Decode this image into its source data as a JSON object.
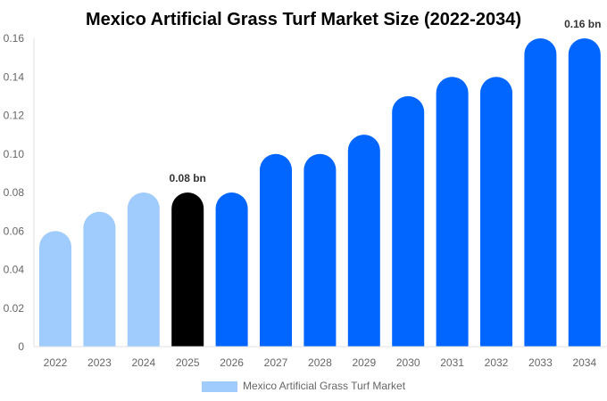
{
  "chart_data": {
    "type": "bar",
    "title": "Mexico Artificial Grass Turf Market Size (2022-2034)",
    "categories": [
      "2022",
      "2023",
      "2024",
      "2025",
      "2026",
      "2027",
      "2028",
      "2029",
      "2030",
      "2031",
      "2032",
      "2033",
      "2034"
    ],
    "series": [
      {
        "name": "Mexico Artificial Grass Turf Market",
        "values": [
          0.06,
          0.07,
          0.08,
          0.08,
          0.08,
          0.1,
          0.1,
          0.11,
          0.13,
          0.14,
          0.14,
          0.16,
          0.16
        ]
      }
    ],
    "ylim": [
      0,
      0.16
    ],
    "yticks": [
      "0",
      "0.02",
      "0.04",
      "0.06",
      "0.08",
      "0.10",
      "0.12",
      "0.14",
      "0.16"
    ],
    "data_labels": [
      {
        "category": "2025",
        "text": "0.08 bn"
      },
      {
        "category": "2034",
        "text": "0.16 bn"
      }
    ],
    "colors": {
      "historical": "#a0cbfd",
      "current": "#000000",
      "forecast": "#0066ff"
    },
    "historical_categories": [
      "2022",
      "2023",
      "2024"
    ],
    "current_category": "2025",
    "grid": false,
    "legend_position": "bottom"
  }
}
